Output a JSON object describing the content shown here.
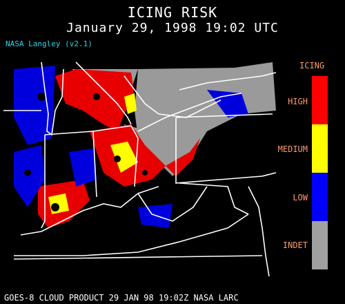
{
  "header": {
    "title": "ICING RISK",
    "datetime": "January 29, 1998 19:02 UTC",
    "credit": "NASA Langley (v2.1)"
  },
  "legend": {
    "title": "ICING",
    "levels": [
      {
        "label": "HIGH",
        "color": "#ff0000"
      },
      {
        "label": "MEDIUM",
        "color": "#ffff00"
      },
      {
        "label": "LOW",
        "color": "#0000ff"
      },
      {
        "label": "INDET",
        "color": "#a0a0a0"
      }
    ]
  },
  "footer": {
    "text": "GOES-8 CLOUD PRODUCT   29 JAN 98 19:02Z NASA LARC"
  },
  "colors": {
    "background": "#000000",
    "boundaries": "#ffffff",
    "credit": "#2ad8e8",
    "legend_text": "#ff9a6a"
  }
}
